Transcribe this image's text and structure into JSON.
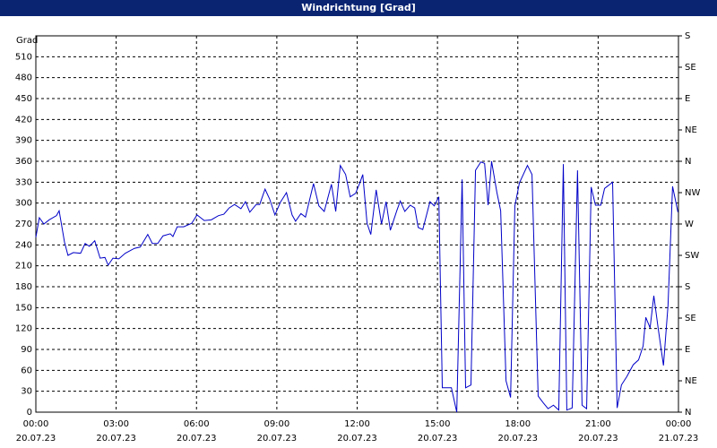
{
  "chart_data": {
    "type": "line",
    "title": "Windrichtung [Grad]",
    "ylabel": "Grad",
    "xlim": [
      0,
      24
    ],
    "xticks": [
      {
        "value": 0,
        "label": "00:00"
      },
      {
        "value": 3,
        "label": "03:00"
      },
      {
        "value": 6,
        "label": "06:00"
      },
      {
        "value": 9,
        "label": "09:00"
      },
      {
        "value": 12,
        "label": "12:00"
      },
      {
        "value": 15,
        "label": "15:00"
      },
      {
        "value": 18,
        "label": "18:00"
      },
      {
        "value": 21,
        "label": "21:00"
      },
      {
        "value": 24,
        "label": "00:00"
      }
    ],
    "xtick_dates": [
      "20.07.23",
      "20.07.23",
      "20.07.23",
      "20.07.23",
      "20.07.23",
      "20.07.23",
      "20.07.23",
      "20.07.23",
      "21.07.23"
    ],
    "ylim": [
      0,
      540
    ],
    "yticks": [
      0,
      30,
      60,
      90,
      120,
      150,
      180,
      210,
      240,
      270,
      300,
      330,
      360,
      390,
      420,
      450,
      480,
      510
    ],
    "y2lim": [
      0,
      540
    ],
    "y2ticks": [
      {
        "value": 0,
        "label": "N"
      },
      {
        "value": 45,
        "label": "NE"
      },
      {
        "value": 90,
        "label": "E"
      },
      {
        "value": 135,
        "label": "SE"
      },
      {
        "value": 180,
        "label": "S"
      },
      {
        "value": 225,
        "label": "SW"
      },
      {
        "value": 270,
        "label": "W"
      },
      {
        "value": 315,
        "label": "NW"
      },
      {
        "value": 360,
        "label": "N"
      },
      {
        "value": 405,
        "label": "NE"
      },
      {
        "value": 450,
        "label": "E"
      },
      {
        "value": 495,
        "label": "SE"
      },
      {
        "value": 540,
        "label": "S"
      }
    ],
    "grid": true,
    "x": [
      0,
      0.13,
      0.3,
      0.5,
      0.77,
      0.87,
      1.07,
      1.2,
      1.4,
      1.67,
      1.84,
      2.0,
      2.2,
      2.4,
      2.58,
      2.7,
      2.88,
      3.1,
      3.34,
      3.68,
      3.9,
      4.18,
      4.35,
      4.55,
      4.75,
      5.02,
      5.12,
      5.28,
      5.52,
      5.82,
      6.02,
      6.29,
      6.55,
      6.82,
      7.02,
      7.22,
      7.42,
      7.66,
      7.83,
      7.99,
      8.23,
      8.36,
      8.56,
      8.73,
      8.93,
      9.13,
      9.36,
      9.57,
      9.7,
      9.9,
      10.07,
      10.37,
      10.57,
      10.77,
      11.04,
      11.2,
      11.37,
      11.57,
      11.74,
      11.94,
      12.11,
      12.21,
      12.37,
      12.51,
      12.71,
      12.91,
      13.08,
      13.24,
      13.48,
      13.61,
      13.78,
      13.98,
      14.15,
      14.28,
      14.45,
      14.72,
      14.88,
      15.05,
      15.18,
      15.52,
      15.72,
      15.92,
      16.05,
      16.25,
      16.42,
      16.62,
      16.76,
      16.89,
      17.02,
      17.22,
      17.36,
      17.56,
      17.73,
      17.89,
      18.06,
      18.36,
      18.53,
      18.76,
      18.96,
      19.13,
      19.33,
      19.53,
      19.7,
      19.83,
      20.03,
      20.23,
      20.4,
      20.57,
      20.74,
      20.9,
      21.1,
      21.24,
      21.54,
      21.71,
      21.87,
      22.07,
      22.31,
      22.51,
      22.68,
      22.78,
      22.94,
      23.08,
      23.24,
      23.44,
      23.61,
      23.78,
      23.98
    ],
    "series": [
      {
        "name": "Windrichtung",
        "color": "#0000c8",
        "values": [
          251,
          279,
          270,
          276,
          282,
          289,
          244,
          225,
          229,
          228,
          242,
          238,
          246,
          221,
          222,
          211,
          221,
          220,
          228,
          235,
          237,
          255,
          242,
          242,
          253,
          256,
          252,
          266,
          266,
          271,
          283,
          275,
          276,
          282,
          284,
          293,
          298,
          292,
          302,
          287,
          298,
          298,
          320,
          306,
          283,
          301,
          315,
          283,
          274,
          285,
          280,
          328,
          296,
          288,
          327,
          288,
          354,
          341,
          309,
          314,
          330,
          341,
          271,
          255,
          319,
          270,
          302,
          261,
          289,
          303,
          288,
          297,
          293,
          265,
          262,
          302,
          296,
          309,
          35,
          35,
          0,
          334,
          35,
          39,
          347,
          359,
          357,
          297,
          360,
          315,
          289,
          45,
          21,
          296,
          329,
          354,
          341,
          23,
          13,
          5,
          10,
          3,
          356,
          3,
          6,
          347,
          10,
          5,
          323,
          297,
          297,
          321,
          330,
          6,
          39,
          51,
          68,
          75,
          95,
          136,
          121,
          167,
          121,
          67,
          153,
          324,
          287
        ]
      }
    ]
  }
}
